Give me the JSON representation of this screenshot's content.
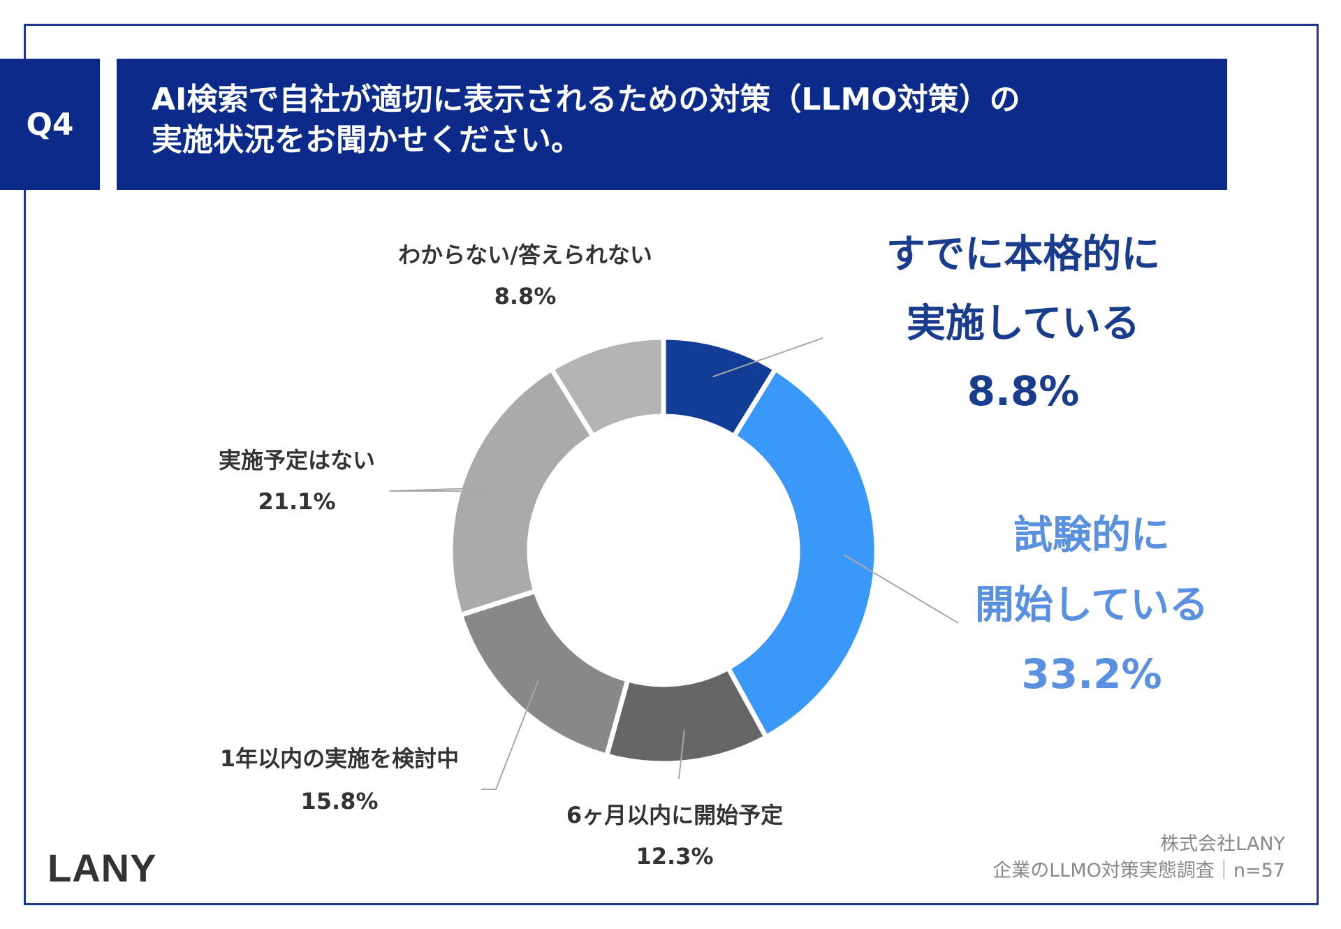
{
  "header": {
    "question_no": "Q4",
    "title_line1": "AI検索で自社が適切に表示されるための対策（LLMO対策）の",
    "title_line2": "実施状況をお聞かせください。"
  },
  "chart_data": {
    "type": "pie",
    "donut": true,
    "categories": [
      "すでに本格的に実施している",
      "試験的に開始している",
      "6ヶ月以内に開始予定",
      "1年以内の実施を検討中",
      "実施予定はない",
      "わからない/答えられない"
    ],
    "values": [
      8.8,
      33.2,
      12.3,
      15.8,
      21.1,
      8.8
    ],
    "value_labels": [
      "8.8%",
      "33.2%",
      "12.3%",
      "15.8%",
      "21.1%",
      "8.8%"
    ],
    "label_lines": [
      [
        "すでに本格的に",
        "実施している"
      ],
      [
        "試験的に",
        "開始している"
      ],
      [
        "6ヶ月以内に開始予定"
      ],
      [
        "1年以内の実施を検討中"
      ],
      [
        "実施予定はない"
      ],
      [
        "わからない/答えられない"
      ]
    ],
    "colors": [
      "#123d97",
      "#3a98f8",
      "#666666",
      "#888888",
      "#aaaaaa",
      "#b4b4b4"
    ],
    "label_colors": [
      "#1a3c8c",
      "#5a90e0",
      "#333333",
      "#333333",
      "#333333",
      "#333333"
    ]
  },
  "footer": {
    "logo": "LANY",
    "company": "株式会社LANY",
    "survey": "企業のLLMO対策実態調査｜n=57"
  }
}
